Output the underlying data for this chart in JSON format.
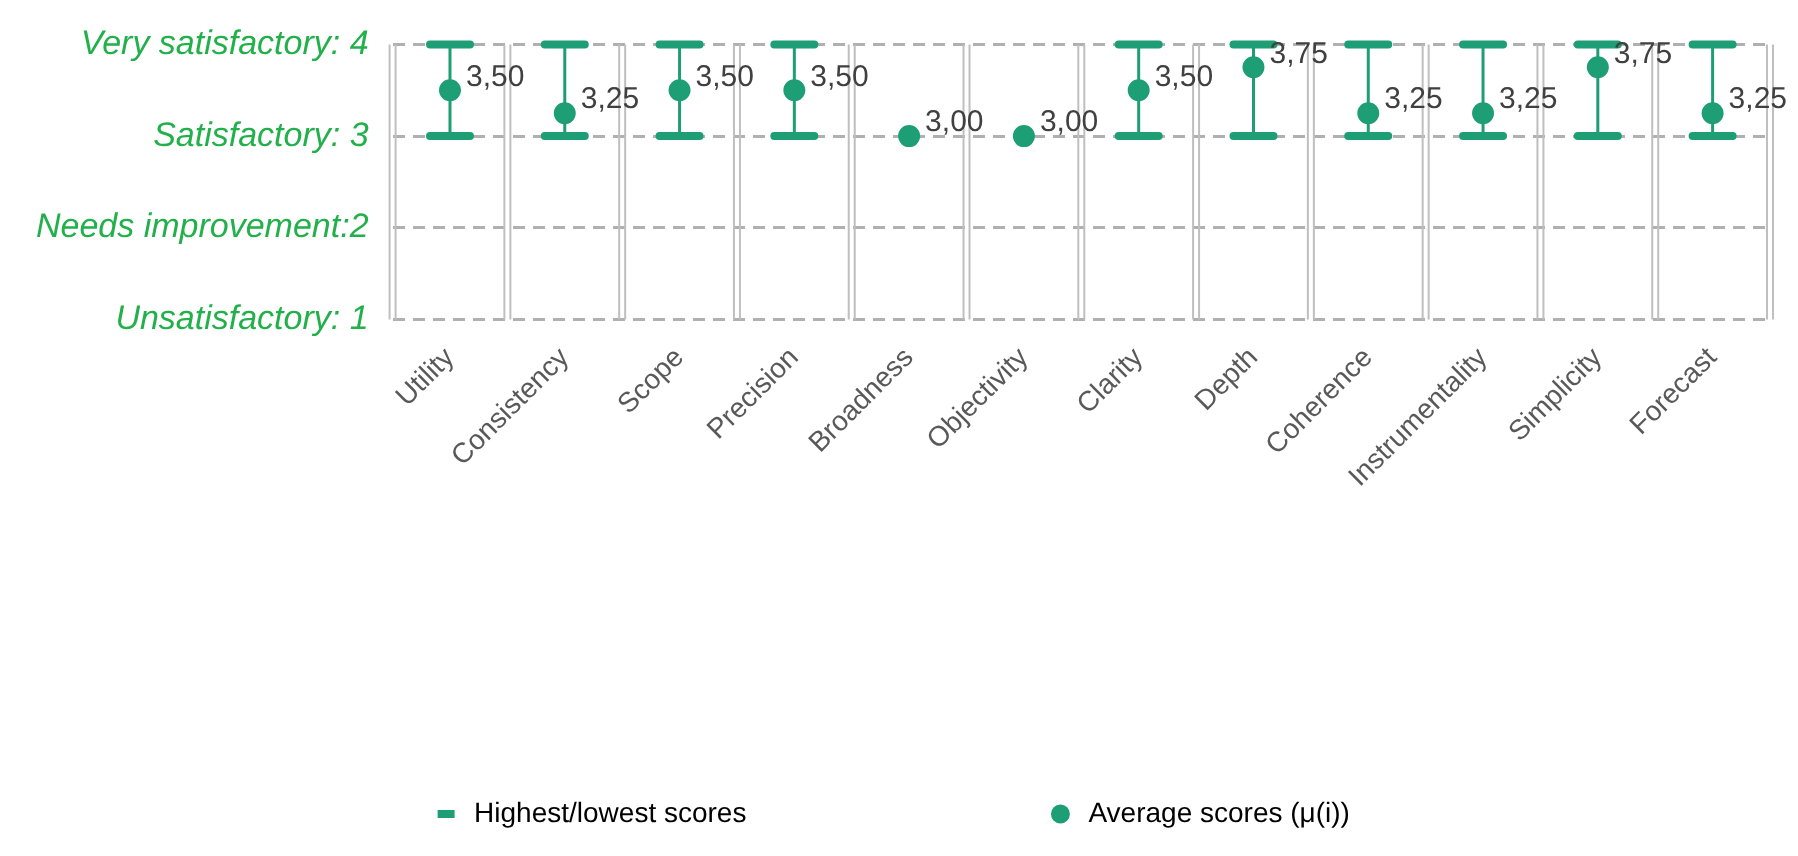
{
  "chart_data": {
    "type": "scatter",
    "categories": [
      "Utility",
      "Consistency",
      "Scope",
      "Precision",
      "Broadness",
      "Objectivity",
      "Clarity",
      "Depth",
      "Coherence",
      "Instrumentality",
      "Simplicity",
      "Forecast"
    ],
    "series": [
      {
        "name": "Average scores (μ(i))",
        "color": "#1e9e74",
        "values": [
          3.5,
          3.25,
          3.5,
          3.5,
          3,
          3,
          3.5,
          3.75,
          3.25,
          3.25,
          3.75,
          3.25
        ],
        "errors": [
          [
            3,
            4
          ],
          [
            3,
            4
          ],
          [
            3,
            4
          ],
          [
            3,
            4
          ],
          [
            3,
            3
          ],
          [
            3,
            3
          ],
          [
            3,
            4
          ],
          [
            3,
            4
          ],
          [
            3,
            4
          ],
          [
            3,
            4
          ],
          [
            3,
            4
          ],
          [
            3,
            4
          ]
        ],
        "value_labels": [
          "3,50",
          "3,25",
          "3,50",
          "3,50",
          "3,00",
          "3,00",
          "3,50",
          "3,75",
          "3,25",
          "3,25",
          "3,75",
          "3,25"
        ]
      }
    ],
    "annotations": [
      "Highest/lowest scores"
    ],
    "ylim": [
      1,
      4
    ],
    "yticks": [
      {
        "value": 1,
        "label": "Unsatisfactory: 1"
      },
      {
        "value": 2,
        "label": "Needs improvement:2"
      },
      {
        "value": 3,
        "label": "Satisfactory: 3"
      },
      {
        "value": 4,
        "label": "Very satisfactory: 4"
      }
    ],
    "grid": true,
    "legend": "bottom",
    "marker": "circle"
  }
}
